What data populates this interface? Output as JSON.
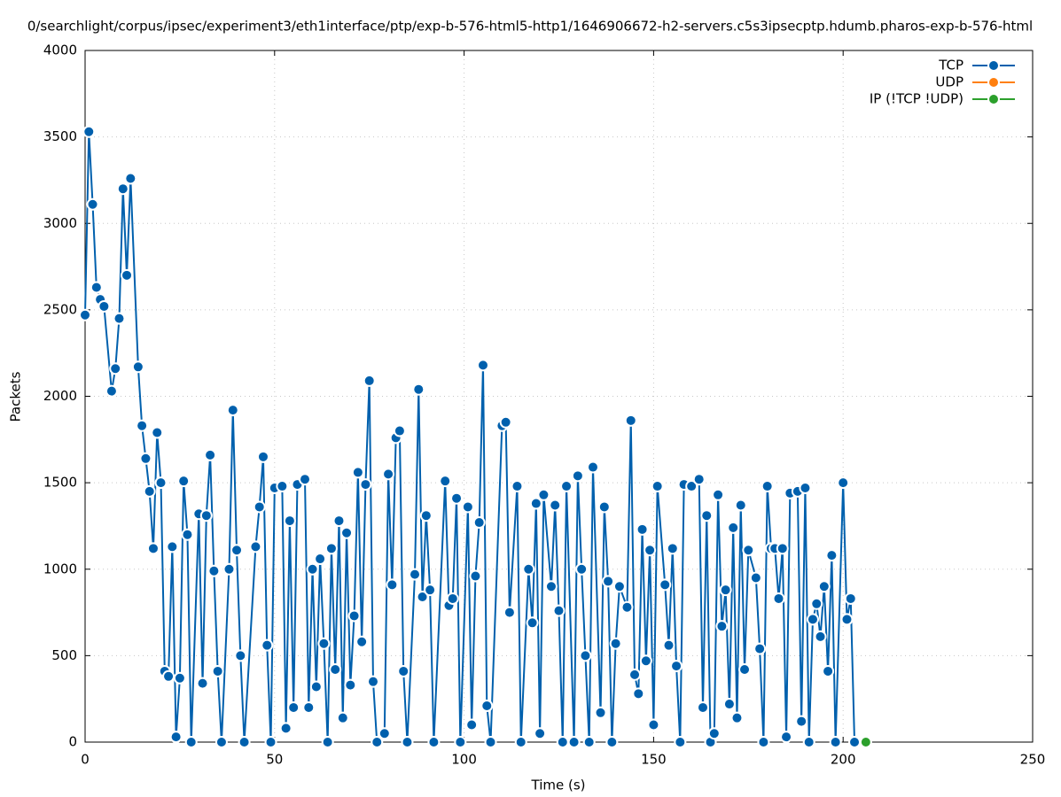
{
  "chart_data": {
    "type": "line",
    "title": "0/searchlight/corpus/ipsec/experiment3/eth1interface/ptp/exp-b-576-html5-http1/1646906672-h2-servers.c5s3ipsecptp.hdumb.pharos-exp-b-576-html",
    "x_label": "Time (s)",
    "y_label": "Packets",
    "xlim": [
      0,
      250
    ],
    "xticks": [
      0,
      50,
      100,
      150,
      200,
      250
    ],
    "ylim": [
      0,
      4000
    ],
    "yticks": [
      0,
      500,
      1000,
      1500,
      2000,
      2500,
      3000,
      3500,
      4000
    ],
    "grid": true,
    "legend": "top-right",
    "series": [
      {
        "name": "TCP",
        "color": "#0060ad",
        "x": [
          0,
          1,
          2,
          3,
          4,
          5,
          7,
          8,
          9,
          10,
          11,
          12,
          14,
          15,
          16,
          17,
          18,
          19,
          20,
          21,
          22,
          23,
          24,
          25,
          26,
          27,
          28,
          30,
          31,
          32,
          33,
          34,
          35,
          36,
          38,
          39,
          40,
          41,
          42,
          45,
          46,
          47,
          48,
          49,
          50,
          52,
          53,
          54,
          55,
          56,
          58,
          59,
          60,
          61,
          62,
          63,
          64,
          65,
          66,
          67,
          68,
          69,
          70,
          71,
          72,
          73,
          74,
          75,
          76,
          77,
          79,
          80,
          81,
          82,
          83,
          84,
          85,
          87,
          88,
          89,
          90,
          91,
          92,
          95,
          96,
          97,
          98,
          99,
          101,
          102,
          103,
          104,
          105,
          106,
          107,
          110,
          111,
          112,
          114,
          115,
          117,
          118,
          119,
          120,
          121,
          123,
          124,
          125,
          126,
          127,
          129,
          130,
          131,
          132,
          133,
          134,
          136,
          137,
          138,
          139,
          140,
          141,
          143,
          144,
          145,
          146,
          147,
          148,
          149,
          150,
          151,
          153,
          154,
          155,
          156,
          157,
          158,
          160,
          162,
          163,
          164,
          165,
          166,
          167,
          168,
          169,
          170,
          171,
          172,
          173,
          174,
          175,
          177,
          178,
          179,
          180,
          181,
          182,
          183,
          184,
          185,
          186,
          188,
          189,
          190,
          191,
          192,
          193,
          194,
          195,
          196,
          197,
          198,
          200,
          201,
          202,
          203
        ],
        "values": [
          2470,
          3530,
          3110,
          2630,
          2560,
          2520,
          2030,
          2160,
          2450,
          3200,
          2700,
          3260,
          2170,
          1830,
          1640,
          1450,
          1120,
          1790,
          1500,
          410,
          380,
          1130,
          30,
          370,
          1510,
          1200,
          0,
          1320,
          340,
          1310,
          1660,
          990,
          410,
          0,
          1000,
          1920,
          1110,
          500,
          0,
          1130,
          1360,
          1650,
          560,
          0,
          1470,
          1480,
          80,
          1280,
          200,
          1490,
          1520,
          200,
          1000,
          320,
          1060,
          570,
          0,
          1120,
          420,
          1280,
          140,
          1210,
          330,
          730,
          1560,
          580,
          1490,
          2090,
          350,
          0,
          50,
          1550,
          910,
          1760,
          1800,
          410,
          0,
          970,
          2040,
          840,
          1310,
          880,
          0,
          1510,
          790,
          830,
          1410,
          0,
          1360,
          100,
          960,
          1270,
          2180,
          210,
          0,
          1830,
          1850,
          750,
          1480,
          0,
          1000,
          690,
          1380,
          50,
          1430,
          900,
          1370,
          760,
          0,
          1480,
          0,
          1540,
          1000,
          500,
          0,
          1590,
          170,
          1360,
          930,
          0,
          570,
          900,
          780,
          1860,
          390,
          280,
          1230,
          470,
          1110,
          100,
          1480,
          910,
          560,
          1120,
          440,
          0,
          1490,
          1480,
          1520,
          200,
          1310,
          0,
          50,
          1430,
          670,
          880,
          220,
          1240,
          140,
          1370,
          420,
          1110,
          950,
          540,
          0,
          1480,
          1120,
          1120,
          830,
          1120,
          30,
          1440,
          1450,
          120,
          1470,
          0,
          710,
          800,
          610,
          900,
          410,
          1080,
          0,
          1500,
          710,
          830,
          0
        ]
      },
      {
        "name": "UDP",
        "color": "#ff7f0e",
        "x": [],
        "values": []
      },
      {
        "name": "IP (!TCP  !UDP)",
        "color": "#2ca02c",
        "x": [
          206
        ],
        "values": [
          0
        ]
      }
    ]
  }
}
